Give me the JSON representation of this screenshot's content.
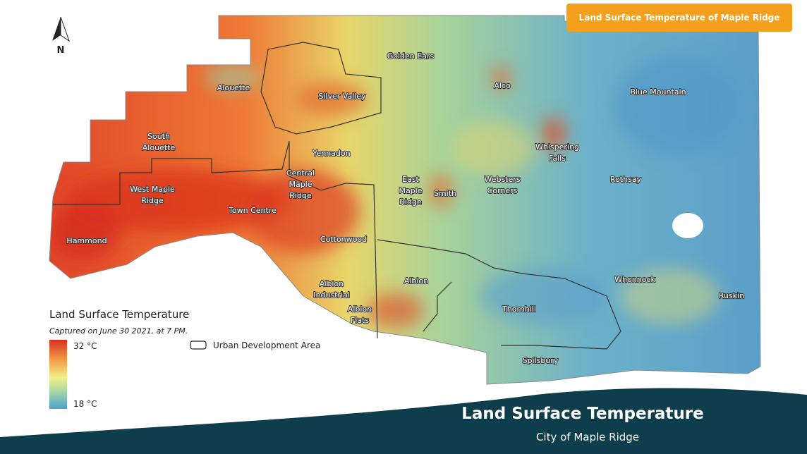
{
  "badge": "Land Surface Temperature of Maple Ridge",
  "north": "N",
  "map": {
    "labels": [
      {
        "lines": [
          "Golden Ears"
        ]
      },
      {
        "lines": [
          "Alouette"
        ]
      },
      {
        "lines": [
          "Silver Valley"
        ]
      },
      {
        "lines": [
          "Alco"
        ]
      },
      {
        "lines": [
          "Blue Mountain"
        ]
      },
      {
        "lines": [
          "South",
          "Alouette"
        ]
      },
      {
        "lines": [
          "Yennadon"
        ]
      },
      {
        "lines": [
          "Whispering",
          "Falls"
        ]
      },
      {
        "lines": [
          "Central",
          "Maple",
          "Ridge"
        ]
      },
      {
        "lines": [
          "East",
          "Maple",
          "Ridge"
        ]
      },
      {
        "lines": [
          "Smith"
        ]
      },
      {
        "lines": [
          "Websters",
          "Corners"
        ]
      },
      {
        "lines": [
          "Rothsay"
        ]
      },
      {
        "lines": [
          "West Maple",
          "Ridge"
        ]
      },
      {
        "lines": [
          "Town Centre"
        ]
      },
      {
        "lines": [
          "Hammond"
        ]
      },
      {
        "lines": [
          "Cottonwood"
        ]
      },
      {
        "lines": [
          "Albion"
        ]
      },
      {
        "lines": [
          "Whonnock"
        ]
      },
      {
        "lines": [
          "Ruskin"
        ]
      },
      {
        "lines": [
          "Albion",
          "Industrial"
        ]
      },
      {
        "lines": [
          "Albion",
          "Flats"
        ]
      },
      {
        "lines": [
          "Thornhill"
        ]
      },
      {
        "lines": [
          "Spilsbury"
        ]
      }
    ]
  },
  "legend": {
    "title": "Land Surface Temperature",
    "subtitle": "Captured on June 30 2021, at 7 PM.",
    "max": "32 °C",
    "min": "18 °C",
    "boundary": "Urban Development Area"
  },
  "footer": {
    "title": "Land Surface Temperature",
    "subtitle": "City of Maple Ridge"
  }
}
